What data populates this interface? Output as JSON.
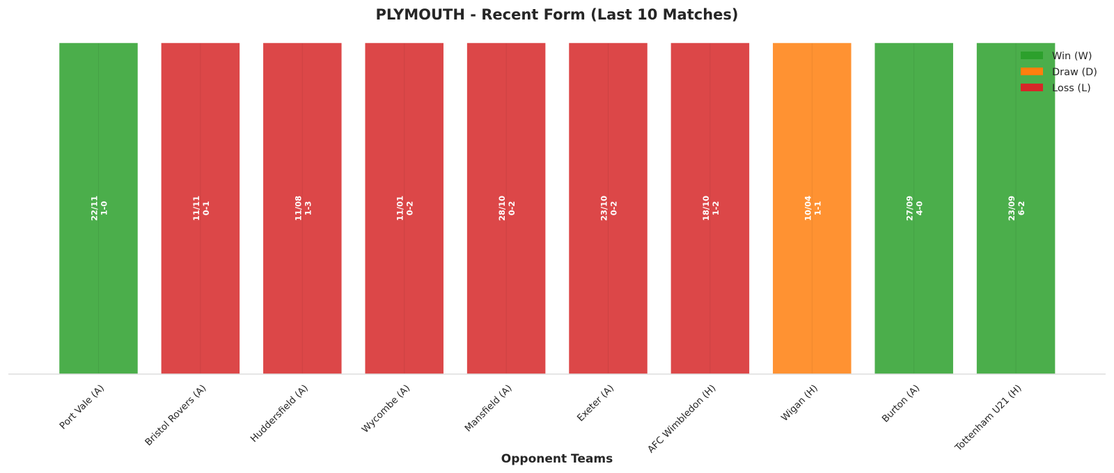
{
  "chart_data": {
    "type": "bar",
    "title": "PLYMOUTH - Recent Form (Last 10 Matches)",
    "xlabel": "Opponent Teams",
    "ylabel": "",
    "ylim": [
      0,
      1
    ],
    "grid": false,
    "legend_position": "top-right",
    "categories": [
      "Port Vale (A)",
      "Bristol Rovers (A)",
      "Huddersfield (A)",
      "Wycombe (A)",
      "Mansfield (A)",
      "Exeter (A)",
      "AFC Wimbledon (H)",
      "Wigan (H)",
      "Burton (A)",
      "Tottenham U21 (H)"
    ],
    "values": [
      1,
      1,
      1,
      1,
      1,
      1,
      1,
      1,
      1,
      1
    ],
    "results": [
      "W",
      "L",
      "L",
      "L",
      "L",
      "L",
      "L",
      "D",
      "W",
      "W"
    ],
    "dates": [
      "22/11",
      "11/11",
      "11/08",
      "11/01",
      "28/10",
      "23/10",
      "18/10",
      "10/04",
      "27/09",
      "23/09"
    ],
    "scores": [
      "1-0",
      "0-1",
      "1-3",
      "0-2",
      "0-2",
      "0-2",
      "1-2",
      "1-1",
      "4-0",
      "6-2"
    ],
    "legend": [
      {
        "key": "W",
        "label": "Win (W)",
        "color": "#2ca02c"
      },
      {
        "key": "D",
        "label": "Draw (D)",
        "color": "#ff7f0e"
      },
      {
        "key": "L",
        "label": "Loss (L)",
        "color": "#d62728"
      }
    ]
  }
}
